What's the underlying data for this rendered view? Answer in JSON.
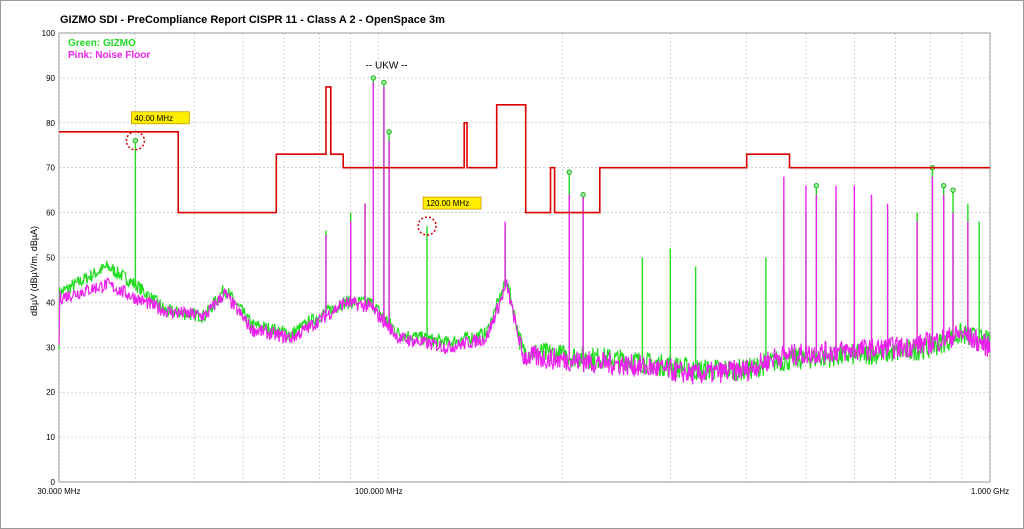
{
  "title": "GIZMO SDI - PreCompliance Report CISPR 11 - Class A 2 - OpenSpace 3m",
  "chart_data": {
    "type": "line",
    "title": "GIZMO SDI - PreCompliance Report CISPR 11 - Class A 2 - OpenSpace 3m",
    "xlabel": "",
    "ylabel": "dBµV (dBµV/m, dBµA)",
    "x_scale": "log",
    "xlim_mhz": [
      30,
      1000
    ],
    "ylim": [
      0,
      100
    ],
    "grid": true,
    "legend_position": "top-left",
    "x_tick_labels": [
      {
        "mhz": 30,
        "label": "30.000 MHz"
      },
      {
        "mhz": 100,
        "label": "100.000 MHz"
      },
      {
        "mhz": 1000,
        "label": "1.000 GHz"
      }
    ],
    "y_ticks": [
      0,
      10,
      20,
      30,
      40,
      50,
      60,
      70,
      80,
      90,
      100
    ],
    "legend": [
      {
        "label": "Green: GIZMO",
        "color": "#22dd22"
      },
      {
        "label": "Pink: Noise Floor",
        "color": "#ee22ee"
      }
    ],
    "annotations": [
      {
        "text": "-- UKW --",
        "x_mhz": 100,
        "y": 93
      }
    ],
    "markers": [
      {
        "label": "40.00 MHz",
        "x_mhz": 40,
        "y": 76
      },
      {
        "label": "120.00 MHz",
        "x_mhz": 120,
        "y": 57
      }
    ],
    "limit_line": {
      "name": "limit",
      "color": "#dd0000",
      "points": [
        [
          30,
          78
        ],
        [
          47,
          78
        ],
        [
          47,
          60
        ],
        [
          68,
          60
        ],
        [
          68,
          73
        ],
        [
          82,
          73
        ],
        [
          82,
          88
        ],
        [
          83.5,
          88
        ],
        [
          83.5,
          73
        ],
        [
          87.5,
          73
        ],
        [
          87.5,
          70
        ],
        [
          138,
          70
        ],
        [
          138,
          80
        ],
        [
          139.5,
          80
        ],
        [
          139.5,
          70
        ],
        [
          156,
          70
        ],
        [
          156,
          84
        ],
        [
          174,
          84
        ],
        [
          174,
          60
        ],
        [
          191,
          60
        ],
        [
          191,
          70
        ],
        [
          194,
          70
        ],
        [
          194,
          60
        ],
        [
          230,
          60
        ],
        [
          230,
          70
        ],
        [
          400,
          70
        ],
        [
          400,
          73
        ],
        [
          470,
          73
        ],
        [
          470,
          70
        ],
        [
          1000,
          70
        ]
      ]
    },
    "series": [
      {
        "name": "Green: GIZMO",
        "color": "#22dd22",
        "baseline": [
          [
            30,
            42
          ],
          [
            36,
            48
          ],
          [
            40,
            44
          ],
          [
            45,
            38
          ],
          [
            52,
            37
          ],
          [
            56,
            43
          ],
          [
            62,
            35
          ],
          [
            72,
            33
          ],
          [
            80,
            37
          ],
          [
            88,
            40
          ],
          [
            97,
            40
          ],
          [
            108,
            33
          ],
          [
            130,
            31
          ],
          [
            150,
            33
          ],
          [
            162,
            45
          ],
          [
            172,
            29
          ],
          [
            210,
            28
          ],
          [
            260,
            27
          ],
          [
            330,
            25
          ],
          [
            400,
            25
          ],
          [
            450,
            27
          ],
          [
            550,
            28
          ],
          [
            720,
            29
          ],
          [
            800,
            30
          ],
          [
            900,
            33
          ],
          [
            1000,
            31
          ]
        ],
        "peaks": [
          [
            40,
            76
          ],
          [
            82,
            56
          ],
          [
            90,
            60
          ],
          [
            95,
            62
          ],
          [
            98,
            90
          ],
          [
            102,
            89
          ],
          [
            104,
            78
          ],
          [
            120,
            57
          ],
          [
            161,
            56
          ],
          [
            205,
            69
          ],
          [
            216,
            64
          ],
          [
            270,
            50
          ],
          [
            300,
            52
          ],
          [
            330,
            48
          ],
          [
            430,
            50
          ],
          [
            460,
            63
          ],
          [
            500,
            60
          ],
          [
            520,
            66
          ],
          [
            560,
            63
          ],
          [
            600,
            61
          ],
          [
            640,
            62
          ],
          [
            680,
            60
          ],
          [
            760,
            60
          ],
          [
            805,
            70
          ],
          [
            840,
            66
          ],
          [
            870,
            65
          ],
          [
            920,
            62
          ],
          [
            960,
            58
          ]
        ]
      },
      {
        "name": "Pink: Noise Floor",
        "color": "#ee22ee",
        "baseline": [
          [
            30,
            41
          ],
          [
            36,
            44
          ],
          [
            40,
            41
          ],
          [
            45,
            38
          ],
          [
            52,
            37
          ],
          [
            56,
            42
          ],
          [
            62,
            34
          ],
          [
            72,
            32
          ],
          [
            80,
            36
          ],
          [
            88,
            40
          ],
          [
            97,
            39
          ],
          [
            108,
            32
          ],
          [
            130,
            30
          ],
          [
            150,
            32
          ],
          [
            162,
            44
          ],
          [
            172,
            28
          ],
          [
            210,
            27
          ],
          [
            260,
            26
          ],
          [
            330,
            24
          ],
          [
            400,
            25
          ],
          [
            450,
            28
          ],
          [
            550,
            29
          ],
          [
            720,
            30
          ],
          [
            800,
            31
          ],
          [
            900,
            33
          ],
          [
            1000,
            30
          ]
        ],
        "peaks": [
          [
            82,
            55
          ],
          [
            90,
            58
          ],
          [
            95,
            62
          ],
          [
            98,
            89
          ],
          [
            102,
            88
          ],
          [
            104,
            76
          ],
          [
            161,
            58
          ],
          [
            205,
            64
          ],
          [
            216,
            64
          ],
          [
            460,
            68
          ],
          [
            500,
            66
          ],
          [
            520,
            64
          ],
          [
            560,
            66
          ],
          [
            600,
            66
          ],
          [
            640,
            64
          ],
          [
            680,
            62
          ],
          [
            760,
            58
          ],
          [
            805,
            68
          ],
          [
            840,
            64
          ],
          [
            870,
            60
          ],
          [
            920,
            58
          ]
        ]
      }
    ]
  }
}
